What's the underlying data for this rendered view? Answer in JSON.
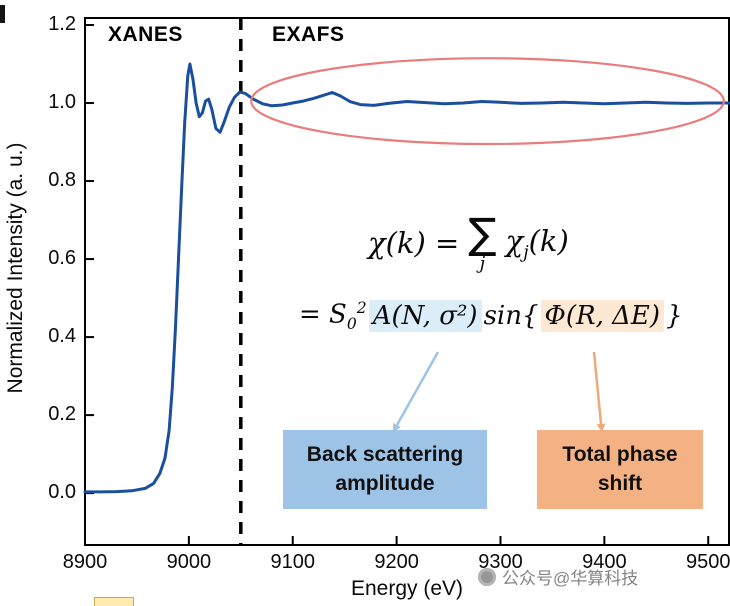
{
  "chart_data": {
    "type": "line",
    "xlabel": "Energy (eV)",
    "ylabel": "Normalized Intensity (a. u.)",
    "xlim": [
      8900,
      9520
    ],
    "ylim": [
      -0.133,
      1.218
    ],
    "grid": false,
    "legend": false,
    "x_ticks": [
      8900,
      9000,
      9100,
      9200,
      9300,
      9400,
      9500
    ],
    "x_tick_labels": [
      "8900",
      "9000",
      "9100",
      "9200",
      "9300",
      "9400",
      "9500"
    ],
    "y_ticks": [
      0.0,
      0.2,
      0.4,
      0.6,
      0.8,
      1.0,
      1.2
    ],
    "y_tick_labels": [
      "0.0",
      "0.2",
      "0.4",
      "0.6",
      "0.8",
      "1.0",
      "1.2"
    ],
    "series": [
      {
        "color": "#1b4f9e",
        "x": [
          8900,
          8915,
          8930,
          8945,
          8958,
          8966,
          8972,
          8977,
          8981,
          8984,
          8987,
          8990,
          8993,
          8996,
          8999,
          9001,
          9004,
          9007,
          9010,
          9013,
          9016,
          9019,
          9022,
          9026,
          9030,
          9034,
          9039,
          9044,
          9049,
          9054,
          9062,
          9071,
          9080,
          9090,
          9100,
          9110,
          9120,
          9130,
          9138,
          9146,
          9155,
          9165,
          9178,
          9192,
          9210,
          9228,
          9246,
          9264,
          9282,
          9300,
          9320,
          9340,
          9360,
          9380,
          9400,
          9420,
          9440,
          9460,
          9480,
          9500,
          9520
        ],
        "y": [
          0.003,
          0.003,
          0.004,
          0.006,
          0.012,
          0.025,
          0.05,
          0.09,
          0.16,
          0.27,
          0.42,
          0.6,
          0.78,
          0.95,
          1.07,
          1.1,
          1.06,
          1.0,
          0.965,
          0.975,
          1.005,
          1.01,
          0.985,
          0.935,
          0.925,
          0.952,
          0.99,
          1.015,
          1.028,
          1.025,
          1.01,
          0.998,
          0.993,
          0.995,
          1.0,
          1.005,
          1.012,
          1.02,
          1.027,
          1.018,
          1.004,
          0.996,
          0.994,
          0.999,
          1.004,
          1.001,
          0.998,
          1.0,
          1.004,
          1.002,
          0.999,
          1.0,
          1.002,
          1.0,
          0.998,
          1.0,
          1.002,
          1.0,
          0.999,
          1.0,
          1.0
        ]
      }
    ],
    "annotations": {
      "divider_x": 9050,
      "xanes_label": "XANES",
      "exafs_label": "EXAFS",
      "ellipse": {
        "x_range": [
          9060,
          9515
        ],
        "y_range": [
          0.895,
          1.115
        ]
      }
    }
  },
  "equation": {
    "chi_lhs": "χ(k) =",
    "sum": "∑",
    "sum_index": "j",
    "chi_term": "χ",
    "chi_term_sub": "j",
    "chi_term_args": "(k)",
    "eq2_prefix": "= S",
    "s_sub": "0",
    "s_sup": "2",
    "amplitude_term": "A(N, σ²)",
    "sin_open": "sin{",
    "phase_term": "Φ(R, ΔE)",
    "brace_close": "}"
  },
  "boxes": {
    "amplitude": {
      "line1": "Back scattering",
      "line2": "amplitude"
    },
    "phase": {
      "line1": "Total phase",
      "line2": "shift"
    }
  },
  "watermark": {
    "text": "公众号@华算科技"
  },
  "colors": {
    "curve": "#1b4f9e",
    "divider": "#000000",
    "ellipse": "#e97c7c",
    "arrow_amplitude": "#9dc3e6",
    "arrow_phase": "#f0a878",
    "amplitude_box_fill": "#9dc3e6",
    "phase_box_fill": "#f4b183",
    "amplitude_highlight": "#daedf8",
    "phase_highlight": "#fde8d4"
  }
}
